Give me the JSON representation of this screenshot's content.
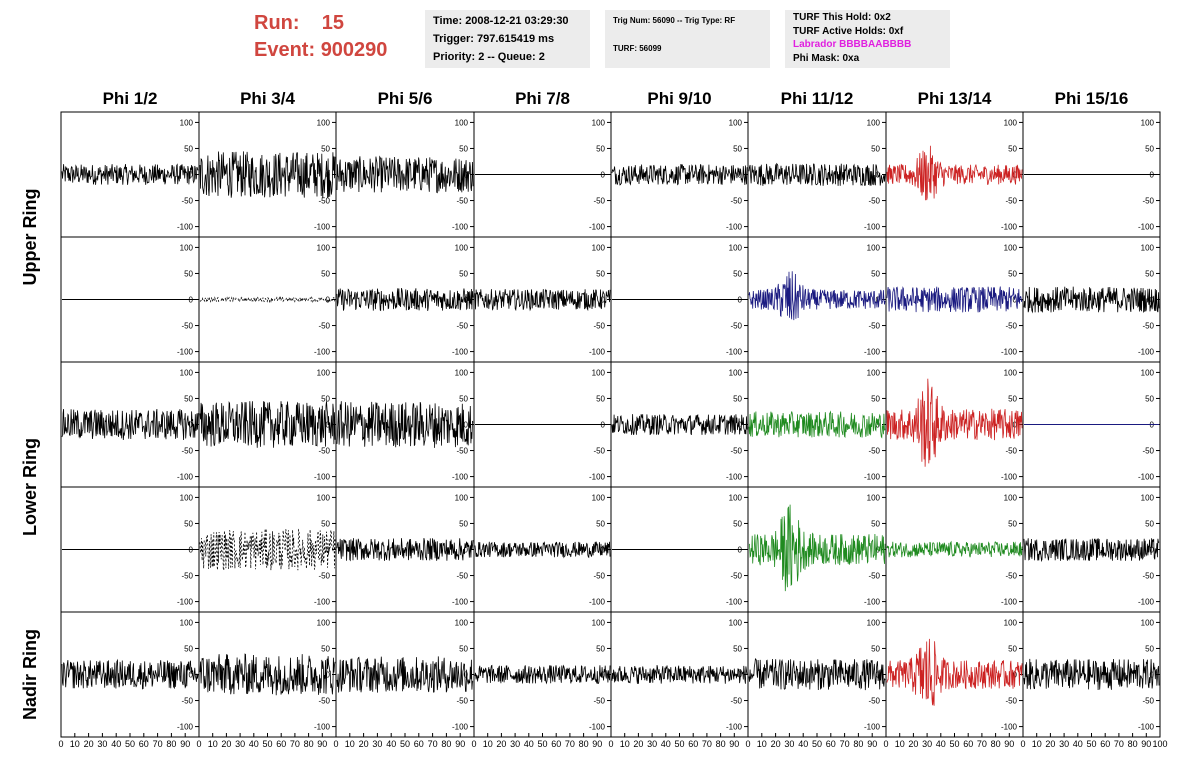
{
  "header": {
    "run_label": "Run:",
    "run_value": "15",
    "event_label": "Event:",
    "event_value": "900290",
    "time": "Time: 2008-12-21 03:29:30",
    "trigger": "Trigger: 797.615419 ms",
    "priority": "Priority: 2 -- Queue: 2",
    "trig_num": "Trig Num: 56090 -- Trig Type: RF",
    "turf": "TURF: 56099",
    "turf_this_hold": "TURF This Hold: 0x2",
    "turf_active_holds": "TURF Active Holds: 0xf",
    "labrador": "Labrador BBBBAABBBB",
    "phi_mask": "Phi Mask: 0xa",
    "colors": {
      "run": "#d0463f",
      "labrador": "#e020e0",
      "box_bg": "#ececec"
    }
  },
  "chart_data": {
    "type": "line",
    "title": "",
    "columns": [
      "Phi 1/2",
      "Phi 3/4",
      "Phi 5/6",
      "Phi 7/8",
      "Phi 9/10",
      "Phi 11/12",
      "Phi 13/14",
      "Phi 15/16"
    ],
    "ring_labels": [
      "Upper Ring",
      "Lower Ring",
      "Nadir Ring"
    ],
    "xlim": [
      0,
      100
    ],
    "ylim": [
      -120,
      120
    ],
    "x_tick_labels": [
      "0",
      "10",
      "20",
      "30",
      "40",
      "50",
      "60",
      "70",
      "80",
      "90",
      "100"
    ],
    "y_tick_labels": [
      "100",
      "50",
      "0",
      "-50",
      "-100"
    ],
    "y_tick_values": [
      100,
      50,
      0,
      -50,
      -100
    ],
    "grid": false,
    "colors": {
      "black": "#000000",
      "red": "#cc2222",
      "blue": "#1a1a80",
      "green": "#1f8a1f"
    },
    "panels": [
      [
        {
          "amp": 20,
          "color": "black",
          "style": "noise"
        },
        {
          "amp": 45,
          "color": "black",
          "style": "noise"
        },
        {
          "amp": 35,
          "color": "black",
          "style": "noise"
        },
        {
          "amp": 0,
          "color": "black",
          "style": "flat"
        },
        {
          "amp": 20,
          "color": "black",
          "style": "noise"
        },
        {
          "amp": 22,
          "color": "black",
          "style": "noise"
        },
        {
          "amp": 35,
          "color": "red",
          "style": "pulse"
        },
        {
          "amp": 0,
          "color": "black",
          "style": "flat"
        }
      ],
      [
        {
          "amp": 0,
          "color": "black",
          "style": "flat"
        },
        {
          "amp": 4,
          "color": "black",
          "style": "dashed"
        },
        {
          "amp": 22,
          "color": "black",
          "style": "noise"
        },
        {
          "amp": 20,
          "color": "black",
          "style": "noise"
        },
        {
          "amp": 0,
          "color": "black",
          "style": "flat"
        },
        {
          "amp": 35,
          "color": "blue",
          "style": "pulse"
        },
        {
          "amp": 25,
          "color": "blue",
          "style": "noise"
        },
        {
          "amp": 25,
          "color": "black",
          "style": "noise"
        }
      ],
      [
        {
          "amp": 30,
          "color": "black",
          "style": "noise"
        },
        {
          "amp": 45,
          "color": "black",
          "style": "noise"
        },
        {
          "amp": 45,
          "color": "black",
          "style": "noise"
        },
        {
          "amp": 0,
          "color": "black",
          "style": "flat"
        },
        {
          "amp": 20,
          "color": "black",
          "style": "noise"
        },
        {
          "amp": 25,
          "color": "green",
          "style": "noise"
        },
        {
          "amp": 55,
          "color": "red",
          "style": "pulse"
        },
        {
          "amp": 0,
          "color": "blue",
          "style": "flat"
        }
      ],
      [
        {
          "amp": 0,
          "color": "black",
          "style": "flat"
        },
        {
          "amp": 40,
          "color": "black",
          "style": "dashed"
        },
        {
          "amp": 22,
          "color": "black",
          "style": "noise"
        },
        {
          "amp": 15,
          "color": "black",
          "style": "noise"
        },
        {
          "amp": 0,
          "color": "black",
          "style": "flat"
        },
        {
          "amp": 55,
          "color": "green",
          "style": "pulse"
        },
        {
          "amp": 15,
          "color": "green",
          "style": "noise"
        },
        {
          "amp": 22,
          "color": "black",
          "style": "noise"
        }
      ],
      [
        {
          "amp": 28,
          "color": "black",
          "style": "noise"
        },
        {
          "amp": 40,
          "color": "black",
          "style": "noise"
        },
        {
          "amp": 35,
          "color": "black",
          "style": "noise"
        },
        {
          "amp": 18,
          "color": "black",
          "style": "noise"
        },
        {
          "amp": 18,
          "color": "black",
          "style": "noise"
        },
        {
          "amp": 30,
          "color": "black",
          "style": "noise"
        },
        {
          "amp": 50,
          "color": "red",
          "style": "pulse"
        },
        {
          "amp": 30,
          "color": "black",
          "style": "noise"
        }
      ]
    ]
  }
}
